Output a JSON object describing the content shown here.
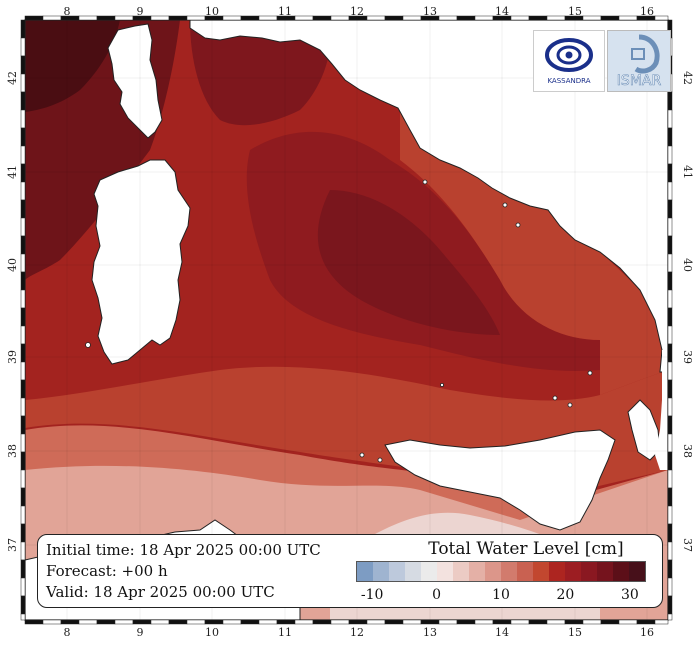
{
  "map": {
    "lon_ticks": [
      "8",
      "9",
      "10",
      "11",
      "12",
      "13",
      "14",
      "15",
      "16"
    ],
    "lat_ticks": [
      "42",
      "41",
      "40",
      "39",
      "38",
      "37"
    ],
    "colors": {
      "sea_darkest": "#4a0d12",
      "sea_dark": "#6e1419",
      "sea_mid": "#8f1b1f",
      "sea_main": "#a3231f",
      "sea_orange": "#b9412f",
      "sea_light": "#cf6b58",
      "sea_pale": "#e1a497",
      "sea_palest": "#ecd5d1",
      "land": "#ffffff"
    }
  },
  "info": {
    "initial_time": "Initial time: 18 Apr 2025 00:00 UTC",
    "forecast": "Forecast: +00 h",
    "valid": "Valid: 18 Apr 2025 00:00 UTC"
  },
  "colorbar": {
    "title": "Total Water Level [cm]",
    "tick_labels": [
      "-10",
      "0",
      "10",
      "20",
      "30"
    ],
    "colors": [
      "#7d9cc3",
      "#9fb4d0",
      "#bdc9dc",
      "#d6dbe3",
      "#ebebeb",
      "#f3e2df",
      "#eccbc4",
      "#e4b0a6",
      "#dc968a",
      "#d27b6d",
      "#c96151",
      "#c2472f",
      "#ad2520",
      "#9c1d22",
      "#8a1821",
      "#75131d",
      "#5c0f18",
      "#47101a"
    ]
  },
  "logos": {
    "kassandra": "KASSANDRA",
    "ismar": "ISMAR"
  }
}
